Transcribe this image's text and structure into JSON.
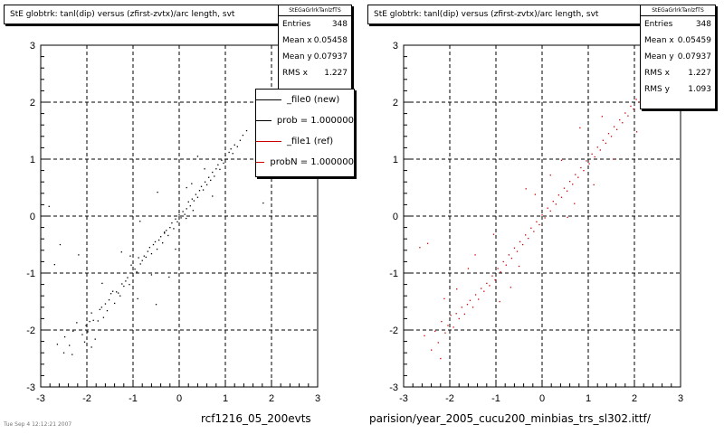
{
  "chart_data": [
    {
      "type": "scatter",
      "title": "StE globtrk: tanl(dip) versus (zfirst-zvtx)/arc length, svt",
      "xlim": [
        -3,
        3
      ],
      "ylim": [
        -3,
        3
      ],
      "x_ticks": [
        "-3",
        "-2",
        "-1",
        "0",
        "1",
        "2",
        "3"
      ],
      "y_ticks": [
        "-3",
        "-2",
        "-1",
        "0",
        "1",
        "2",
        "3"
      ],
      "grid": true,
      "color": "#000000",
      "stats": {
        "header": "StEGaGrlrkTanlzfTS",
        "rows": [
          {
            "label": "Entries",
            "value": "348"
          },
          {
            "label": "Mean x",
            "value": "0.05458"
          },
          {
            "label": "Mean y",
            "value": "0.07937"
          },
          {
            "label": "RMS x",
            "value": "1.227"
          }
        ]
      },
      "legend": [
        {
          "label": "_file0 (new)",
          "color": "#000000"
        },
        {
          "label": "prob = 1.000000",
          "color": "#000000"
        },
        {
          "label": "_file1 (ref)",
          "color": "#cc0000"
        },
        {
          "label": "probN = 1.000000",
          "color": "#cc0000"
        }
      ],
      "footer": "rcf1216_05_200evts",
      "corner_text": "Tue Sep 4 12:12:21 2007",
      "points": [
        [
          -2.82,
          0.17
        ],
        [
          -2.7,
          -0.85
        ],
        [
          -2.64,
          -2.25
        ],
        [
          -2.58,
          -0.5
        ],
        [
          -2.5,
          -2.4
        ],
        [
          -2.48,
          -2.12
        ],
        [
          -2.38,
          -2.27
        ],
        [
          -2.32,
          -2.43
        ],
        [
          -2.3,
          -2.02
        ],
        [
          -2.22,
          -1.87
        ],
        [
          -2.18,
          -0.68
        ],
        [
          -2.1,
          -2.08
        ],
        [
          -2.05,
          -2.21
        ],
        [
          -2.02,
          -1.92
        ],
        [
          -1.98,
          -2.03
        ],
        [
          -1.94,
          -1.85
        ],
        [
          -1.9,
          -1.7
        ],
        [
          -1.86,
          -1.83
        ],
        [
          -1.82,
          -2.16
        ],
        [
          -1.76,
          -1.84
        ],
        [
          -1.72,
          -1.64
        ],
        [
          -1.68,
          -1.6
        ],
        [
          -1.64,
          -1.78
        ],
        [
          -1.6,
          -1.54
        ],
        [
          -1.56,
          -1.66
        ],
        [
          -1.52,
          -1.47
        ],
        [
          -1.48,
          -1.36
        ],
        [
          -1.44,
          -1.32
        ],
        [
          -1.4,
          -1.53
        ],
        [
          -1.36,
          -1.33
        ],
        [
          -1.32,
          -1.35
        ],
        [
          -1.28,
          -1.4
        ],
        [
          -1.24,
          -1.19
        ],
        [
          -1.2,
          -1.23
        ],
        [
          -1.16,
          -1.14
        ],
        [
          -1.12,
          -1.08
        ],
        [
          -1.08,
          -1.2
        ],
        [
          -1.04,
          -0.86
        ],
        [
          -1.0,
          -1.05
        ],
        [
          -0.96,
          -0.93
        ],
        [
          -0.92,
          -0.98
        ],
        [
          -0.88,
          -0.73
        ],
        [
          -0.84,
          -0.84
        ],
        [
          -0.8,
          -0.78
        ],
        [
          -0.76,
          -0.7
        ],
        [
          -0.72,
          -0.72
        ],
        [
          -0.68,
          -0.62
        ],
        [
          -0.64,
          -0.55
        ],
        [
          -0.6,
          -0.66
        ],
        [
          -0.56,
          -0.5
        ],
        [
          -0.52,
          -0.45
        ],
        [
          -0.48,
          -0.58
        ],
        [
          -0.44,
          -0.42
        ],
        [
          -0.4,
          -0.36
        ],
        [
          -0.36,
          -0.47
        ],
        [
          -0.32,
          -0.3
        ],
        [
          -0.28,
          -0.25
        ],
        [
          -0.24,
          -0.34
        ],
        [
          -0.2,
          -0.2
        ],
        [
          -0.16,
          -0.12
        ],
        [
          -0.12,
          -0.22
        ],
        [
          -0.08,
          -0.05
        ],
        [
          -0.04,
          -0.1
        ],
        [
          0.0,
          0.02
        ],
        [
          0.04,
          -0.03
        ],
        [
          0.08,
          0.08
        ],
        [
          0.12,
          0.03
        ],
        [
          0.16,
          0.13
        ],
        [
          0.2,
          0.25
        ],
        [
          0.24,
          0.18
        ],
        [
          0.28,
          0.3
        ],
        [
          0.32,
          0.27
        ],
        [
          0.36,
          0.38
        ],
        [
          0.4,
          0.33
        ],
        [
          0.44,
          0.45
        ],
        [
          0.48,
          0.52
        ],
        [
          0.52,
          0.46
        ],
        [
          0.56,
          0.6
        ],
        [
          0.6,
          0.55
        ],
        [
          0.64,
          0.68
        ],
        [
          0.68,
          0.63
        ],
        [
          0.72,
          0.77
        ],
        [
          0.76,
          0.7
        ],
        [
          0.8,
          0.83
        ],
        [
          0.84,
          0.9
        ],
        [
          0.88,
          0.82
        ],
        [
          0.92,
          0.98
        ],
        [
          0.96,
          0.93
        ],
        [
          1.0,
          1.06
        ],
        [
          1.04,
          1.0
        ],
        [
          1.08,
          1.12
        ],
        [
          1.12,
          1.18
        ],
        [
          1.16,
          1.1
        ],
        [
          1.2,
          1.25
        ],
        [
          1.26,
          1.22
        ],
        [
          1.32,
          1.33
        ],
        [
          1.38,
          1.42
        ],
        [
          1.46,
          1.5
        ],
        [
          -0.5,
          -1.55
        ],
        [
          -0.22,
          -1.07
        ],
        [
          0.27,
          0.57
        ],
        [
          0.16,
          0.5
        ],
        [
          0.55,
          0.83
        ],
        [
          0.4,
          1.05
        ],
        [
          -1.67,
          -1.18
        ],
        [
          -1.06,
          -0.7
        ],
        [
          -0.08,
          -0.58
        ],
        [
          -0.9,
          -1.45
        ],
        [
          -0.6,
          -1.03
        ],
        [
          -0.32,
          -0.28
        ],
        [
          0.15,
          -0.04
        ],
        [
          0.72,
          0.35
        ],
        [
          1.73,
          0.73
        ],
        [
          -0.85,
          -0.09
        ],
        [
          -0.47,
          0.42
        ],
        [
          0.3,
          0.1
        ],
        [
          -1.25,
          -0.63
        ],
        [
          1.82,
          0.23
        ],
        [
          -1.9,
          -2.3
        ]
      ]
    },
    {
      "type": "scatter",
      "title": "StE globtrk: tanl(dip) versus (zfirst-zvtx)/arc length, svt",
      "xlim": [
        -3,
        3
      ],
      "ylim": [
        -3,
        3
      ],
      "x_ticks": [
        "-3",
        "-2",
        "-1",
        "0",
        "1",
        "2",
        "3"
      ],
      "y_ticks": [
        "-3",
        "-2",
        "-1",
        "0",
        "1",
        "2",
        "3"
      ],
      "grid": true,
      "color": "#cc0000",
      "stats": {
        "header": "StEGaGrlrkTanlzfTS",
        "rows": [
          {
            "label": "Entries",
            "value": "348"
          },
          {
            "label": "Mean x",
            "value": "0.05459"
          },
          {
            "label": "Mean y",
            "value": "0.07937"
          },
          {
            "label": "RMS x",
            "value": "1.227"
          },
          {
            "label": "RMS y",
            "value": "1.093"
          }
        ]
      },
      "footer": "parision/year_2005_cucu200_minbias_trs_sl302.ittf/",
      "points": [
        [
          -2.65,
          -0.55
        ],
        [
          -2.55,
          -2.1
        ],
        [
          -2.48,
          -0.48
        ],
        [
          -2.4,
          -2.35
        ],
        [
          -2.32,
          -2.02
        ],
        [
          -2.25,
          -2.22
        ],
        [
          -2.18,
          -1.85
        ],
        [
          -2.1,
          -2.05
        ],
        [
          -2.04,
          -1.92
        ],
        [
          -1.98,
          -1.74
        ],
        [
          -1.92,
          -1.95
        ],
        [
          -1.86,
          -1.71
        ],
        [
          -1.8,
          -1.8
        ],
        [
          -1.74,
          -1.6
        ],
        [
          -1.68,
          -1.72
        ],
        [
          -1.62,
          -1.55
        ],
        [
          -1.56,
          -1.48
        ],
        [
          -1.5,
          -1.6
        ],
        [
          -1.44,
          -1.38
        ],
        [
          -1.38,
          -1.46
        ],
        [
          -1.32,
          -1.27
        ],
        [
          -1.26,
          -1.32
        ],
        [
          -1.2,
          -1.18
        ],
        [
          -1.14,
          -1.22
        ],
        [
          -1.08,
          -1.05
        ],
        [
          -1.02,
          -1.12
        ],
        [
          -0.96,
          -0.92
        ],
        [
          -0.9,
          -0.98
        ],
        [
          -0.84,
          -0.8
        ],
        [
          -0.78,
          -0.86
        ],
        [
          -0.72,
          -0.68
        ],
        [
          -0.66,
          -0.74
        ],
        [
          -0.6,
          -0.56
        ],
        [
          -0.54,
          -0.62
        ],
        [
          -0.48,
          -0.45
        ],
        [
          -0.42,
          -0.5
        ],
        [
          -0.36,
          -0.33
        ],
        [
          -0.3,
          -0.39
        ],
        [
          -0.24,
          -0.21
        ],
        [
          -0.18,
          -0.27
        ],
        [
          -0.12,
          -0.1
        ],
        [
          -0.06,
          -0.15
        ],
        [
          0.0,
          0.02
        ],
        [
          0.06,
          -0.03
        ],
        [
          0.12,
          0.14
        ],
        [
          0.18,
          0.09
        ],
        [
          0.24,
          0.26
        ],
        [
          0.3,
          0.21
        ],
        [
          0.36,
          0.37
        ],
        [
          0.42,
          0.33
        ],
        [
          0.48,
          0.49
        ],
        [
          0.54,
          0.44
        ],
        [
          0.6,
          0.61
        ],
        [
          0.66,
          0.56
        ],
        [
          0.72,
          0.73
        ],
        [
          0.78,
          0.68
        ],
        [
          0.84,
          0.85
        ],
        [
          0.9,
          0.8
        ],
        [
          0.96,
          0.97
        ],
        [
          1.02,
          0.92
        ],
        [
          1.08,
          1.09
        ],
        [
          1.14,
          1.04
        ],
        [
          1.2,
          1.21
        ],
        [
          1.26,
          1.16
        ],
        [
          1.32,
          1.33
        ],
        [
          1.38,
          1.28
        ],
        [
          1.44,
          1.45
        ],
        [
          1.5,
          1.4
        ],
        [
          1.56,
          1.57
        ],
        [
          1.62,
          1.52
        ],
        [
          1.68,
          1.69
        ],
        [
          1.74,
          1.64
        ],
        [
          1.8,
          1.81
        ],
        [
          1.86,
          1.76
        ],
        [
          1.92,
          1.93
        ],
        [
          1.98,
          1.88
        ],
        [
          2.04,
          2.05
        ],
        [
          2.1,
          2.0
        ],
        [
          2.16,
          2.12
        ],
        [
          2.22,
          2.2
        ],
        [
          -1.45,
          -0.68
        ],
        [
          -1.05,
          -0.32
        ],
        [
          -0.68,
          -1.25
        ],
        [
          -0.35,
          0.48
        ],
        [
          0.18,
          0.72
        ],
        [
          0.55,
          -0.02
        ],
        [
          0.82,
          1.55
        ],
        [
          1.12,
          0.55
        ],
        [
          1.55,
          1.0
        ],
        [
          -2.12,
          -1.45
        ],
        [
          -0.92,
          -1.5
        ],
        [
          0.42,
          0.98
        ],
        [
          -1.6,
          -0.92
        ],
        [
          -0.5,
          -0.88
        ],
        [
          0.7,
          0.22
        ],
        [
          1.3,
          1.75
        ],
        [
          -2.2,
          -2.5
        ],
        [
          -1.85,
          -1.28
        ],
        [
          2.05,
          1.48
        ],
        [
          -0.15,
          0.38
        ]
      ]
    }
  ]
}
